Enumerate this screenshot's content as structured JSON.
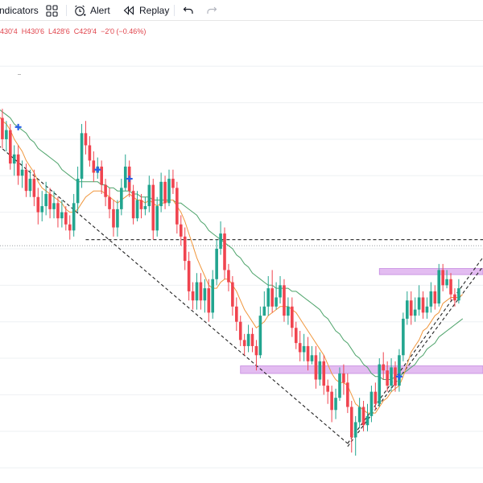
{
  "toolbar": {
    "indicators_label": "ndicators",
    "alert_label": "Alert",
    "replay_label": "Replay"
  },
  "ohlc": {
    "open": "430'4",
    "high": "H430'6",
    "low": "L428'6",
    "close": "C429'4",
    "change": "−2'0 (−0.46%)"
  },
  "colors": {
    "up": "#22a58f",
    "down": "#f0444f",
    "ma_fast": "#f0963c",
    "ma_slow": "#4da36a",
    "zone": "#d9a6ec",
    "signal_cross": "#2860e8"
  },
  "chart_data": {
    "type": "candlestick",
    "candles": [
      {
        "o": 384,
        "c": 395,
        "h": 398,
        "l": 381
      },
      {
        "o": 395,
        "c": 388,
        "h": 398,
        "l": 385
      },
      {
        "o": 388,
        "c": 391,
        "h": 394,
        "l": 384
      },
      {
        "o": 391,
        "c": 380,
        "h": 393,
        "l": 378
      },
      {
        "o": 380,
        "c": 383,
        "h": 386,
        "l": 376
      },
      {
        "o": 383,
        "c": 376,
        "h": 386,
        "l": 373
      },
      {
        "o": 376,
        "c": 378,
        "h": 381,
        "l": 372
      },
      {
        "o": 378,
        "c": 371,
        "h": 380,
        "l": 369
      },
      {
        "o": 371,
        "c": 375,
        "h": 378,
        "l": 369
      },
      {
        "o": 375,
        "c": 369,
        "h": 378,
        "l": 366
      },
      {
        "o": 369,
        "c": 364,
        "h": 372,
        "l": 360
      },
      {
        "o": 364,
        "c": 366,
        "h": 371,
        "l": 361
      },
      {
        "o": 366,
        "c": 370,
        "h": 374,
        "l": 363
      },
      {
        "o": 370,
        "c": 365,
        "h": 372,
        "l": 362
      },
      {
        "o": 365,
        "c": 367,
        "h": 371,
        "l": 362
      },
      {
        "o": 367,
        "c": 362,
        "h": 369,
        "l": 359
      },
      {
        "o": 362,
        "c": 364,
        "h": 368,
        "l": 359
      },
      {
        "o": 364,
        "c": 360,
        "h": 366,
        "l": 358
      },
      {
        "o": 360,
        "c": 358,
        "h": 363,
        "l": 355
      },
      {
        "o": 358,
        "c": 367,
        "h": 370,
        "l": 356
      },
      {
        "o": 367,
        "c": 375,
        "h": 379,
        "l": 364
      },
      {
        "o": 375,
        "c": 390,
        "h": 393,
        "l": 372
      },
      {
        "o": 390,
        "c": 386,
        "h": 394,
        "l": 383
      },
      {
        "o": 386,
        "c": 381,
        "h": 389,
        "l": 379
      },
      {
        "o": 381,
        "c": 377,
        "h": 384,
        "l": 374
      },
      {
        "o": 377,
        "c": 379,
        "h": 382,
        "l": 375
      },
      {
        "o": 379,
        "c": 373,
        "h": 381,
        "l": 370
      },
      {
        "o": 373,
        "c": 369,
        "h": 375,
        "l": 366
      },
      {
        "o": 369,
        "c": 365,
        "h": 372,
        "l": 362
      },
      {
        "o": 365,
        "c": 359,
        "h": 368,
        "l": 356
      },
      {
        "o": 359,
        "c": 365,
        "h": 368,
        "l": 356
      },
      {
        "o": 365,
        "c": 372,
        "h": 375,
        "l": 363
      },
      {
        "o": 372,
        "c": 379,
        "h": 383,
        "l": 371
      },
      {
        "o": 379,
        "c": 371,
        "h": 381,
        "l": 369
      },
      {
        "o": 371,
        "c": 362,
        "h": 373,
        "l": 360
      },
      {
        "o": 362,
        "c": 368,
        "h": 371,
        "l": 361
      },
      {
        "o": 368,
        "c": 365,
        "h": 370,
        "l": 362
      },
      {
        "o": 365,
        "c": 366,
        "h": 369,
        "l": 363
      },
      {
        "o": 366,
        "c": 373,
        "h": 376,
        "l": 364
      },
      {
        "o": 373,
        "c": 358,
        "h": 375,
        "l": 355
      },
      {
        "o": 358,
        "c": 366,
        "h": 369,
        "l": 356
      },
      {
        "o": 366,
        "c": 374,
        "h": 377,
        "l": 364
      },
      {
        "o": 374,
        "c": 367,
        "h": 376,
        "l": 365
      },
      {
        "o": 367,
        "c": 375,
        "h": 378,
        "l": 366
      },
      {
        "o": 375,
        "c": 372,
        "h": 378,
        "l": 370
      },
      {
        "o": 372,
        "c": 360,
        "h": 374,
        "l": 357
      },
      {
        "o": 360,
        "c": 356,
        "h": 363,
        "l": 353
      },
      {
        "o": 356,
        "c": 348,
        "h": 359,
        "l": 345
      },
      {
        "o": 348,
        "c": 338,
        "h": 351,
        "l": 335
      },
      {
        "o": 338,
        "c": 335,
        "h": 341,
        "l": 332
      },
      {
        "o": 335,
        "c": 341,
        "h": 344,
        "l": 332
      },
      {
        "o": 341,
        "c": 335,
        "h": 344,
        "l": 332
      },
      {
        "o": 335,
        "c": 339,
        "h": 342,
        "l": 331
      },
      {
        "o": 339,
        "c": 331,
        "h": 342,
        "l": 328
      },
      {
        "o": 331,
        "c": 342,
        "h": 345,
        "l": 329
      },
      {
        "o": 342,
        "c": 352,
        "h": 355,
        "l": 340
      },
      {
        "o": 352,
        "c": 357,
        "h": 361,
        "l": 350
      },
      {
        "o": 357,
        "c": 345,
        "h": 359,
        "l": 342
      },
      {
        "o": 345,
        "c": 341,
        "h": 347,
        "l": 338
      },
      {
        "o": 341,
        "c": 333,
        "h": 343,
        "l": 330
      },
      {
        "o": 333,
        "c": 328,
        "h": 336,
        "l": 325
      },
      {
        "o": 328,
        "c": 322,
        "h": 330,
        "l": 320
      },
      {
        "o": 322,
        "c": 320,
        "h": 324,
        "l": 317
      },
      {
        "o": 320,
        "c": 324,
        "h": 327,
        "l": 318
      },
      {
        "o": 324,
        "c": 320,
        "h": 326,
        "l": 318
      },
      {
        "o": 320,
        "c": 317,
        "h": 322,
        "l": 312
      },
      {
        "o": 317,
        "c": 330,
        "h": 333,
        "l": 316
      },
      {
        "o": 330,
        "c": 333,
        "h": 338,
        "l": 330
      },
      {
        "o": 333,
        "c": 339,
        "h": 343,
        "l": 330
      },
      {
        "o": 339,
        "c": 333,
        "h": 345,
        "l": 331
      },
      {
        "o": 333,
        "c": 336,
        "h": 341,
        "l": 332
      },
      {
        "o": 336,
        "c": 340,
        "h": 343,
        "l": 334
      },
      {
        "o": 340,
        "c": 330,
        "h": 342,
        "l": 328
      },
      {
        "o": 330,
        "c": 333,
        "h": 336,
        "l": 327
      },
      {
        "o": 333,
        "c": 326,
        "h": 336,
        "l": 323
      },
      {
        "o": 326,
        "c": 321,
        "h": 328,
        "l": 319
      },
      {
        "o": 321,
        "c": 318,
        "h": 325,
        "l": 315
      },
      {
        "o": 318,
        "c": 320,
        "h": 324,
        "l": 315
      },
      {
        "o": 320,
        "c": 315,
        "h": 323,
        "l": 312
      },
      {
        "o": 315,
        "c": 317,
        "h": 320,
        "l": 314
      },
      {
        "o": 317,
        "c": 309,
        "h": 320,
        "l": 306
      },
      {
        "o": 309,
        "c": 315,
        "h": 318,
        "l": 307
      },
      {
        "o": 315,
        "c": 307,
        "h": 317,
        "l": 304
      },
      {
        "o": 307,
        "c": 305,
        "h": 309,
        "l": 301
      },
      {
        "o": 305,
        "c": 299,
        "h": 307,
        "l": 295
      },
      {
        "o": 299,
        "c": 303,
        "h": 306,
        "l": 296
      },
      {
        "o": 303,
        "c": 311,
        "h": 313,
        "l": 302
      },
      {
        "o": 311,
        "c": 308,
        "h": 314,
        "l": 304
      },
      {
        "o": 308,
        "c": 300,
        "h": 311,
        "l": 298
      },
      {
        "o": 300,
        "c": 290,
        "h": 302,
        "l": 285
      },
      {
        "o": 290,
        "c": 295,
        "h": 297,
        "l": 284
      },
      {
        "o": 295,
        "c": 300,
        "h": 303,
        "l": 293
      },
      {
        "o": 300,
        "c": 294,
        "h": 302,
        "l": 292
      },
      {
        "o": 294,
        "c": 297,
        "h": 301,
        "l": 292
      },
      {
        "o": 297,
        "c": 305,
        "h": 307,
        "l": 295
      },
      {
        "o": 305,
        "c": 301,
        "h": 308,
        "l": 299
      },
      {
        "o": 301,
        "c": 314,
        "h": 316,
        "l": 300
      },
      {
        "o": 314,
        "c": 312,
        "h": 318,
        "l": 309
      },
      {
        "o": 312,
        "c": 307,
        "h": 315,
        "l": 305
      },
      {
        "o": 307,
        "c": 313,
        "h": 316,
        "l": 305
      },
      {
        "o": 313,
        "c": 307,
        "h": 315,
        "l": 305
      },
      {
        "o": 307,
        "c": 317,
        "h": 319,
        "l": 305
      },
      {
        "o": 317,
        "c": 329,
        "h": 331,
        "l": 315
      },
      {
        "o": 329,
        "c": 335,
        "h": 338,
        "l": 327
      },
      {
        "o": 335,
        "c": 330,
        "h": 338,
        "l": 327
      },
      {
        "o": 330,
        "c": 332,
        "h": 336,
        "l": 328
      },
      {
        "o": 332,
        "c": 336,
        "h": 340,
        "l": 330
      },
      {
        "o": 336,
        "c": 331,
        "h": 338,
        "l": 329
      },
      {
        "o": 331,
        "c": 333,
        "h": 336,
        "l": 329
      },
      {
        "o": 333,
        "c": 338,
        "h": 341,
        "l": 331
      },
      {
        "o": 338,
        "c": 334,
        "h": 340,
        "l": 332
      },
      {
        "o": 334,
        "c": 345,
        "h": 347,
        "l": 333
      },
      {
        "o": 345,
        "c": 340,
        "h": 347,
        "l": 338
      },
      {
        "o": 340,
        "c": 342,
        "h": 345,
        "l": 339
      },
      {
        "o": 342,
        "c": 337,
        "h": 344,
        "l": 335
      },
      {
        "o": 337,
        "c": 335,
        "h": 339,
        "l": 333
      },
      {
        "o": 335,
        "c": 339,
        "h": 342,
        "l": 334
      }
    ],
    "ma_fast": [
      396,
      394,
      393,
      391,
      388,
      386,
      384,
      381,
      379,
      377,
      374,
      372,
      371,
      370,
      369,
      368,
      367,
      365,
      364,
      364,
      365,
      367,
      369,
      370,
      371,
      371,
      371,
      370,
      369,
      368,
      367,
      368,
      369,
      370,
      369,
      368,
      368,
      367,
      368,
      367,
      366,
      367,
      367,
      368,
      368,
      366,
      364,
      361,
      357,
      353,
      349,
      346,
      343,
      340,
      339,
      339,
      341,
      342,
      342,
      340,
      338,
      335,
      332,
      330,
      328,
      326,
      327,
      328,
      330,
      331,
      332,
      333,
      333,
      333,
      332,
      331,
      329,
      327,
      325,
      323,
      321,
      319,
      317,
      314,
      311,
      309,
      308,
      308,
      307,
      304,
      301,
      300,
      299,
      298,
      298,
      298,
      300,
      302,
      303,
      305,
      306,
      307,
      310,
      314,
      318,
      320,
      322,
      325,
      326,
      328,
      330,
      331,
      334,
      335,
      336,
      336,
      336,
      337
    ],
    "ma_slow": [
      398,
      397,
      396,
      395,
      393,
      392,
      391,
      390,
      388,
      387,
      385,
      384,
      383,
      382,
      381,
      380,
      378,
      377,
      376,
      375,
      374,
      374,
      374,
      374,
      374,
      374,
      373,
      373,
      372,
      372,
      371,
      371,
      371,
      371,
      370,
      370,
      369,
      369,
      369,
      368,
      368,
      368,
      368,
      368,
      368,
      367,
      367,
      366,
      365,
      364,
      363,
      361,
      360,
      358,
      357,
      356,
      355,
      354,
      353,
      352,
      350,
      349,
      347,
      346,
      344,
      343,
      342,
      341,
      340,
      340,
      339,
      339,
      339,
      339,
      338,
      338,
      337,
      336,
      335,
      334,
      333,
      332,
      330,
      329,
      327,
      325,
      324,
      322,
      321,
      319,
      317,
      316,
      314,
      313,
      311,
      310,
      310,
      309,
      309,
      309,
      310,
      310,
      311,
      312,
      313,
      314,
      316,
      317,
      319,
      320,
      321,
      323,
      324,
      325,
      326,
      327,
      328,
      329
    ],
    "zones": [
      {
        "y1": 343.5,
        "y2": 345.5,
        "start_index": 96,
        "end_index": 122
      },
      {
        "y1": 311,
        "y2": 313.5,
        "start_index": 61,
        "end_index": 122
      }
    ],
    "horizontal_dotted": {
      "y": 353
    },
    "horizontal_dashed": {
      "y": 355,
      "start_index": 22,
      "end_index": 122
    },
    "trend_lines": [
      {
        "x1": 0,
        "y1": 386,
        "x2": 88,
        "y2": 288
      },
      {
        "x1": 88,
        "y1": 288,
        "x2": 122,
        "y2": 349
      },
      {
        "x1": 88,
        "y1": 287,
        "x2": 122,
        "y2": 346
      }
    ],
    "markers": [
      {
        "index": 5,
        "value": 392
      },
      {
        "index": 25,
        "value": 378
      },
      {
        "index": 33,
        "value": 375
      },
      {
        "index": 101,
        "value": 310
      }
    ],
    "grid": true,
    "ylim": [
      275,
      420
    ]
  }
}
